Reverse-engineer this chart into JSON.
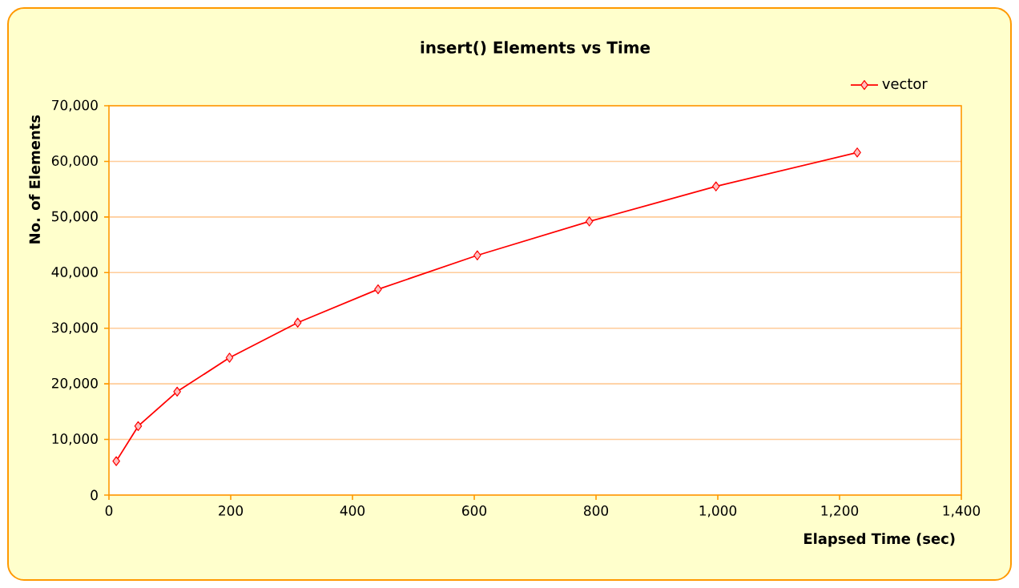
{
  "chart_data": {
    "type": "line",
    "title": "insert() Elements vs Time",
    "xlabel": "Elapsed Time (sec)",
    "ylabel": "No. of Elements",
    "x": [
      12,
      48,
      112,
      198,
      310,
      442,
      605,
      789,
      997,
      1229
    ],
    "series": [
      {
        "name": "vector",
        "color": "#ff0000",
        "values": [
          6100,
          12400,
          18600,
          24700,
          31000,
          37000,
          43100,
          49200,
          55500,
          61600
        ]
      }
    ],
    "xlim": [
      0,
      1400
    ],
    "xticks": [
      0,
      200,
      400,
      600,
      800,
      {
        "value": 1000,
        "label": "1,000"
      },
      {
        "value": 1200,
        "label": "1,200"
      },
      {
        "value": 1400,
        "label": "1,400"
      }
    ],
    "ylim": [
      0,
      70000
    ],
    "yticks": [
      0,
      {
        "value": 10000,
        "label": "10,000"
      },
      {
        "value": 20000,
        "label": "20,000"
      },
      {
        "value": 30000,
        "label": "30,000"
      },
      {
        "value": 40000,
        "label": "40,000"
      },
      {
        "value": 50000,
        "label": "50,000"
      },
      {
        "value": 60000,
        "label": "60,000"
      },
      {
        "value": 70000,
        "label": "70,000"
      }
    ],
    "grid": "y",
    "legend": "top right",
    "marker": "diamond",
    "line_style": "solid"
  }
}
